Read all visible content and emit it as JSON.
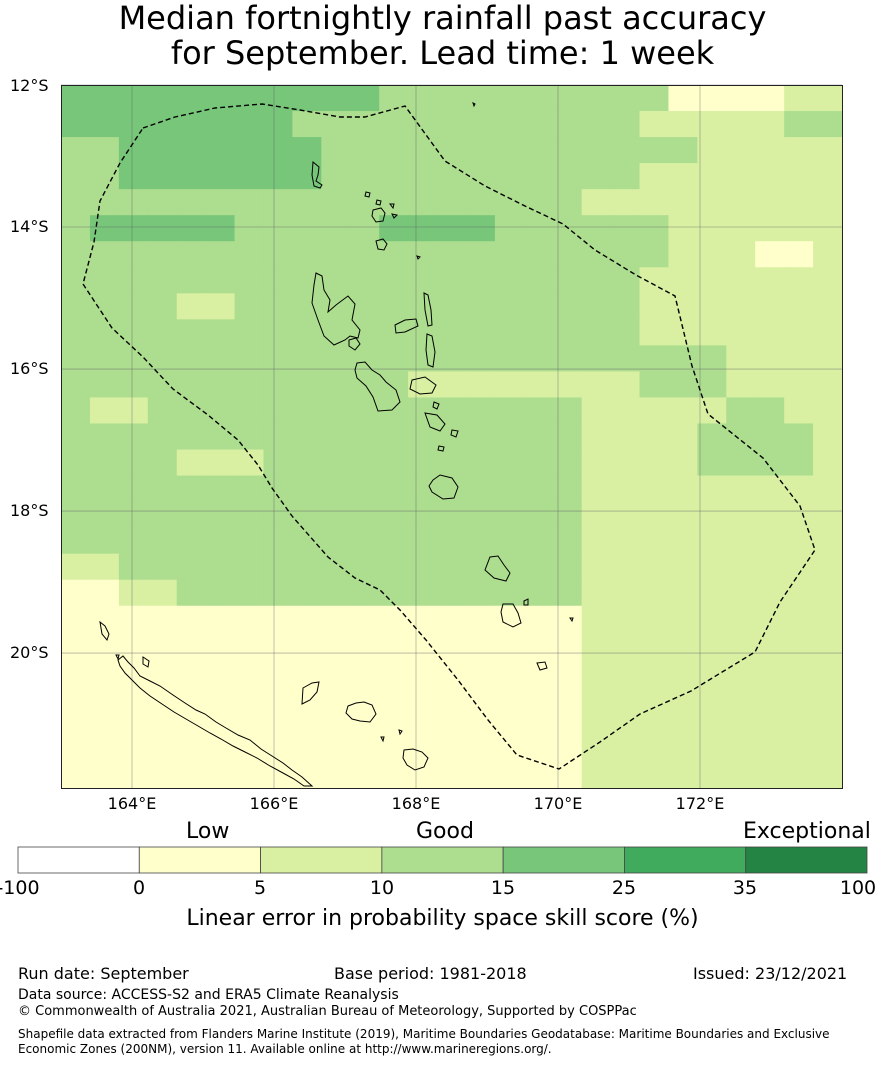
{
  "title": {
    "line1": "Median fortnightly rainfall past accuracy",
    "line2": "for September. Lead time: 1 week"
  },
  "map": {
    "lat_labels": [
      "12°S",
      "14°S",
      "16°S",
      "18°S",
      "20°S"
    ],
    "lon_labels": [
      "164°E",
      "166°E",
      "168°E",
      "170°E",
      "172°E"
    ],
    "lon_range": [
      163,
      174
    ],
    "lat_range": [
      -21.9,
      -12
    ],
    "boundary": "dashed EEZ boundary (Vanuatu)",
    "cell_levels_note": "cell values are colorbar bin indices 1-5",
    "grid_cells": [
      [
        4,
        4,
        4,
        4,
        4,
        4,
        4,
        4,
        4,
        4,
        4,
        3,
        3,
        3,
        3,
        3,
        3,
        3,
        3,
        3,
        3,
        1,
        1,
        1,
        1,
        2,
        2
      ],
      [
        4,
        4,
        4,
        4,
        4,
        4,
        4,
        4,
        3,
        3,
        3,
        3,
        3,
        3,
        3,
        3,
        3,
        3,
        3,
        3,
        2,
        2,
        2,
        2,
        2,
        3,
        3
      ],
      [
        3,
        3,
        4,
        4,
        4,
        4,
        4,
        4,
        4,
        3,
        3,
        3,
        3,
        3,
        3,
        3,
        3,
        3,
        3,
        3,
        3,
        3,
        2,
        2,
        2,
        2,
        2
      ],
      [
        3,
        3,
        4,
        4,
        4,
        4,
        4,
        4,
        4,
        3,
        3,
        3,
        3,
        3,
        3,
        3,
        3,
        3,
        3,
        3,
        2,
        2,
        2,
        2,
        2,
        2,
        2
      ],
      [
        3,
        3,
        3,
        3,
        3,
        3,
        3,
        3,
        3,
        3,
        3,
        3,
        3,
        3,
        3,
        3,
        3,
        3,
        2,
        2,
        2,
        2,
        2,
        2,
        2,
        2,
        2
      ],
      [
        3,
        4,
        4,
        4,
        4,
        4,
        3,
        3,
        3,
        3,
        3,
        4,
        4,
        4,
        4,
        3,
        3,
        3,
        3,
        3,
        3,
        2,
        2,
        2,
        2,
        2,
        2
      ],
      [
        3,
        3,
        3,
        3,
        3,
        3,
        3,
        3,
        3,
        3,
        3,
        3,
        3,
        3,
        3,
        3,
        3,
        3,
        3,
        3,
        3,
        2,
        2,
        2,
        1,
        1,
        2
      ],
      [
        3,
        3,
        3,
        3,
        3,
        3,
        3,
        3,
        3,
        3,
        3,
        3,
        3,
        3,
        3,
        3,
        3,
        3,
        3,
        3,
        2,
        2,
        2,
        2,
        2,
        2,
        2
      ],
      [
        3,
        3,
        3,
        3,
        2,
        2,
        3,
        3,
        3,
        3,
        3,
        3,
        3,
        3,
        3,
        3,
        3,
        3,
        3,
        3,
        2,
        2,
        2,
        2,
        2,
        2,
        2
      ],
      [
        3,
        3,
        3,
        3,
        3,
        3,
        3,
        3,
        3,
        3,
        3,
        3,
        3,
        3,
        3,
        3,
        3,
        3,
        3,
        3,
        2,
        2,
        2,
        2,
        2,
        2,
        2
      ],
      [
        3,
        3,
        3,
        3,
        3,
        3,
        3,
        3,
        3,
        3,
        3,
        3,
        3,
        3,
        3,
        3,
        3,
        3,
        3,
        3,
        3,
        3,
        3,
        2,
        2,
        2,
        2
      ],
      [
        3,
        3,
        3,
        3,
        3,
        3,
        3,
        3,
        3,
        3,
        3,
        3,
        2,
        2,
        2,
        2,
        2,
        2,
        2,
        2,
        3,
        3,
        3,
        2,
        2,
        2,
        2
      ],
      [
        3,
        2,
        2,
        3,
        3,
        3,
        3,
        3,
        3,
        3,
        3,
        3,
        3,
        3,
        3,
        3,
        3,
        3,
        2,
        2,
        2,
        2,
        2,
        3,
        3,
        2,
        2
      ],
      [
        3,
        3,
        3,
        3,
        3,
        3,
        3,
        3,
        3,
        3,
        3,
        3,
        3,
        3,
        3,
        3,
        3,
        3,
        2,
        2,
        2,
        2,
        3,
        3,
        3,
        3,
        2
      ],
      [
        3,
        3,
        3,
        3,
        2,
        2,
        2,
        3,
        3,
        3,
        3,
        3,
        3,
        3,
        3,
        3,
        3,
        3,
        2,
        2,
        2,
        2,
        3,
        3,
        3,
        3,
        2
      ],
      [
        3,
        3,
        3,
        3,
        3,
        3,
        3,
        3,
        3,
        3,
        3,
        3,
        3,
        3,
        3,
        3,
        3,
        3,
        2,
        2,
        2,
        2,
        2,
        2,
        2,
        2,
        2
      ],
      [
        3,
        3,
        3,
        3,
        3,
        3,
        3,
        3,
        3,
        3,
        3,
        3,
        3,
        3,
        3,
        3,
        3,
        3,
        2,
        2,
        2,
        2,
        2,
        2,
        2,
        2,
        2
      ],
      [
        3,
        3,
        3,
        3,
        3,
        3,
        3,
        3,
        3,
        3,
        3,
        3,
        3,
        3,
        3,
        3,
        3,
        3,
        2,
        2,
        2,
        2,
        2,
        2,
        2,
        2,
        2
      ],
      [
        2,
        2,
        3,
        3,
        3,
        3,
        3,
        3,
        3,
        3,
        3,
        3,
        3,
        3,
        3,
        3,
        3,
        3,
        2,
        2,
        2,
        2,
        2,
        2,
        2,
        2,
        2
      ],
      [
        1,
        1,
        2,
        2,
        3,
        3,
        3,
        3,
        3,
        3,
        3,
        3,
        3,
        3,
        3,
        3,
        3,
        3,
        2,
        2,
        2,
        2,
        2,
        2,
        2,
        2,
        2
      ],
      [
        1,
        1,
        1,
        1,
        1,
        1,
        1,
        1,
        1,
        1,
        1,
        1,
        1,
        1,
        1,
        1,
        1,
        1,
        2,
        2,
        2,
        2,
        2,
        2,
        2,
        2,
        2
      ],
      [
        1,
        1,
        1,
        1,
        1,
        1,
        1,
        1,
        1,
        1,
        1,
        1,
        1,
        1,
        1,
        1,
        1,
        1,
        2,
        2,
        2,
        2,
        2,
        2,
        2,
        2,
        2
      ],
      [
        1,
        1,
        1,
        1,
        1,
        1,
        1,
        1,
        1,
        1,
        1,
        1,
        1,
        1,
        1,
        1,
        1,
        1,
        2,
        2,
        2,
        2,
        2,
        2,
        2,
        2,
        2
      ],
      [
        1,
        1,
        1,
        1,
        1,
        1,
        1,
        1,
        1,
        1,
        1,
        1,
        1,
        1,
        1,
        1,
        1,
        1,
        2,
        2,
        2,
        2,
        2,
        2,
        2,
        2,
        2
      ],
      [
        1,
        1,
        1,
        1,
        1,
        1,
        1,
        1,
        1,
        1,
        1,
        1,
        1,
        1,
        1,
        1,
        1,
        1,
        2,
        2,
        2,
        2,
        2,
        2,
        2,
        2,
        2
      ],
      [
        1,
        1,
        1,
        1,
        1,
        1,
        1,
        1,
        1,
        1,
        1,
        1,
        1,
        1,
        1,
        1,
        1,
        1,
        2,
        2,
        2,
        2,
        2,
        2,
        2,
        2,
        2
      ],
      [
        1,
        1,
        1,
        1,
        1,
        1,
        1,
        1,
        1,
        1,
        1,
        1,
        1,
        1,
        1,
        1,
        1,
        1,
        2,
        2,
        2,
        2,
        2,
        2,
        2,
        2,
        2
      ]
    ]
  },
  "colorbar": {
    "categories": [
      "Low",
      "Good",
      "Exceptional"
    ],
    "ticks": [
      "-100",
      "0",
      "5",
      "10",
      "15",
      "25",
      "35",
      "100"
    ],
    "colors": [
      "#ffffff",
      "#ffffcc",
      "#d9f0a3",
      "#addd8e",
      "#78c679",
      "#41ab5d",
      "#238443"
    ],
    "label": "Linear error in probability space skill score (%)"
  },
  "footer": {
    "run_date": "Run date: September",
    "base_period": "Base period: 1981-2018",
    "issued": "Issued: 23/12/2021",
    "data_source": "Data source: ACCESS-S2 and ERA5 Climate Reanalysis",
    "copyright": "© Commonwealth of Australia 2021, Australian Bureau of Meteorology, Supported by COSPPac",
    "shapefile": "Shapefile data extracted from Flanders Marine Institute (2019), Maritime Boundaries Geodatabase: Maritime Boundaries and Exclusive Economic Zones (200NM), version 11. Available online at http://www.marineregions.org/."
  }
}
